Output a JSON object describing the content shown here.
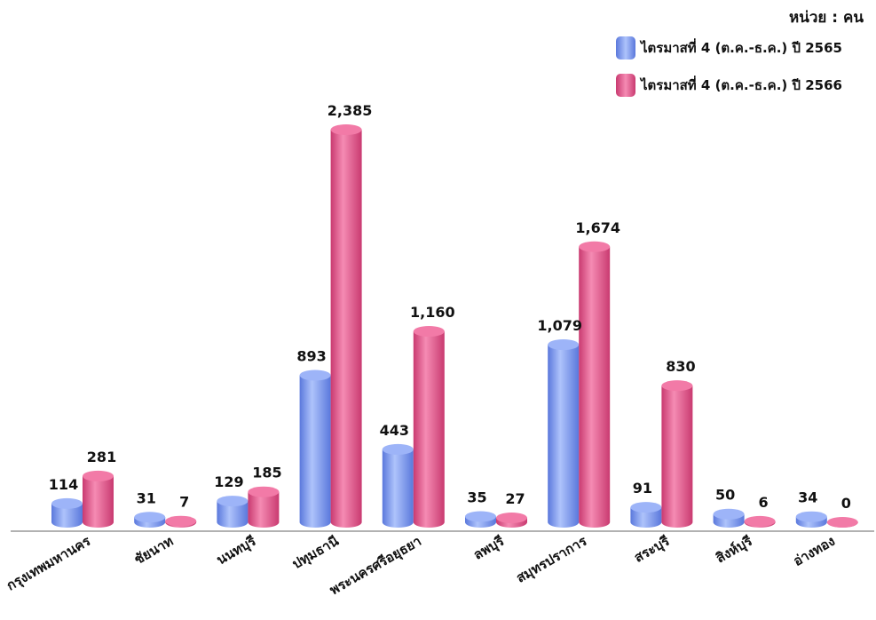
{
  "unit_label": "หน่วย : คน",
  "chart_data": {
    "type": "bar",
    "categories": [
      "กรุงเทพมหานคร",
      "ชัยนาท",
      "นนทบุรี",
      "ปทุมธานี",
      "พระนครศรีอยุธยา",
      "ลพบุรี",
      "สมุทรปราการ",
      "สระบุรี",
      "สิงห์บุรี",
      "อ่างทอง"
    ],
    "series": [
      {
        "name": "ไตรมาสที่ 4 (ต.ค.-ธ.ค.) ปี 2565",
        "color": "#7f9ff5",
        "values": [
          114,
          31,
          129,
          893,
          443,
          35,
          1079,
          91,
          50,
          34
        ],
        "labels": [
          "114",
          "31",
          "129",
          "893",
          "443",
          "35",
          "1,079",
          "91",
          "50",
          "34"
        ]
      },
      {
        "name": "ไตรมาสที่ 4 (ต.ค.-ธ.ค.) ปี 2566",
        "color": "#e8578e",
        "values": [
          281,
          7,
          185,
          2385,
          1160,
          27,
          1674,
          830,
          6,
          0
        ],
        "labels": [
          "281",
          "7",
          "185",
          "2,385",
          "1,160",
          "27",
          "1,674",
          "830",
          "6",
          "0"
        ]
      }
    ],
    "ylim": [
      0,
      2385
    ],
    "legend": "top-right",
    "grid": false
  }
}
